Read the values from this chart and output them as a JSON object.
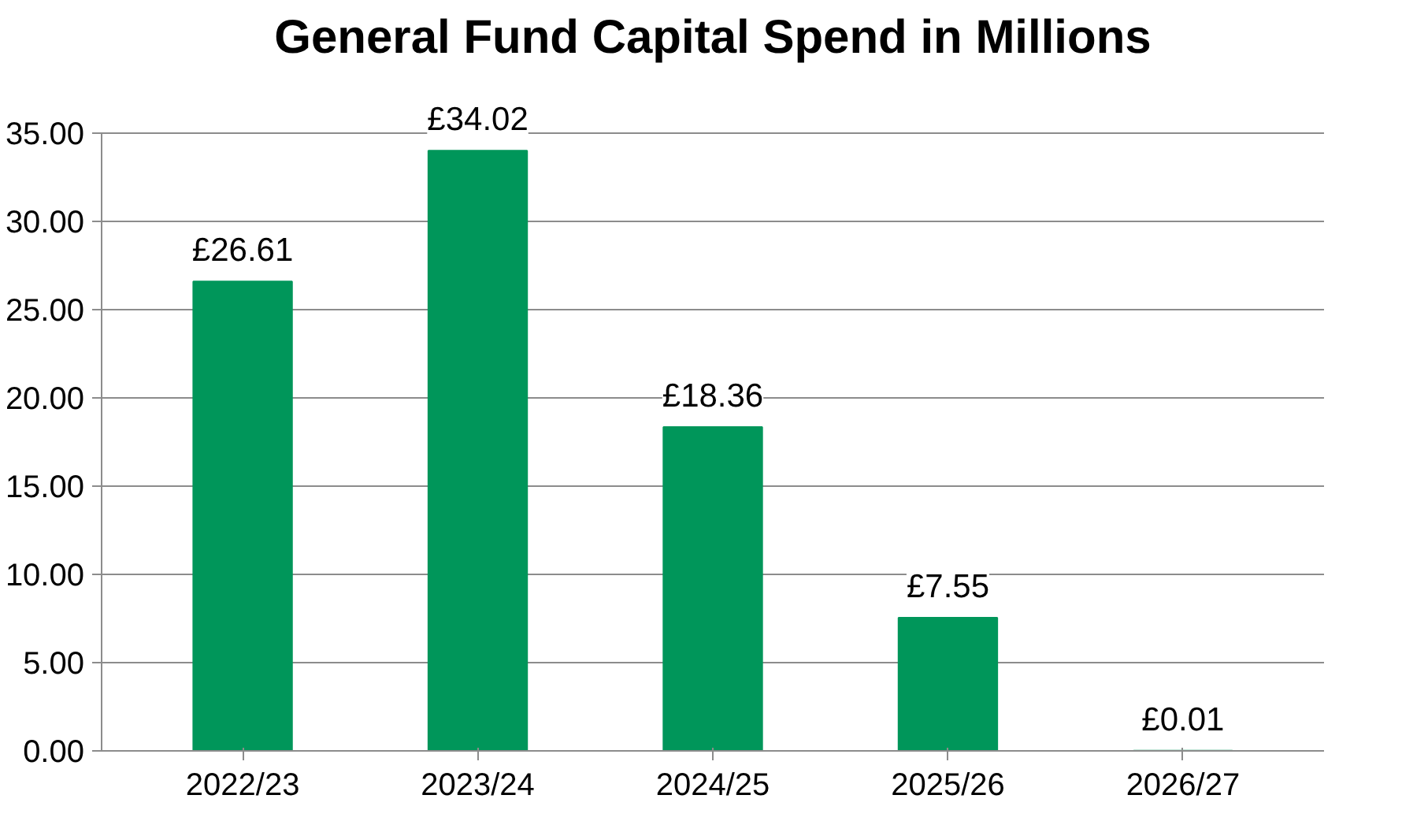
{
  "chart_data": {
    "type": "bar",
    "title": "General Fund Capital Spend in Millions",
    "categories": [
      "2022/23",
      "2023/24",
      "2024/25",
      "2025/26",
      "2026/27"
    ],
    "values": [
      26.61,
      34.02,
      18.36,
      7.55,
      0.01
    ],
    "value_labels": [
      "£26.61",
      "£34.02",
      "£18.36",
      "£7.55",
      "£0.01"
    ],
    "color": "#00965a",
    "ylim": [
      0,
      35
    ],
    "yticks": [
      {
        "value": 0,
        "label": "0.00"
      },
      {
        "value": 5,
        "label": "5.00"
      },
      {
        "value": 10,
        "label": "10.00"
      },
      {
        "value": 15,
        "label": "15.00"
      },
      {
        "value": 20,
        "label": "20.00"
      },
      {
        "value": 25,
        "label": "25.00"
      },
      {
        "value": 30,
        "label": "30.00"
      },
      {
        "value": 35,
        "label": "35.00"
      }
    ],
    "grid": "y"
  }
}
